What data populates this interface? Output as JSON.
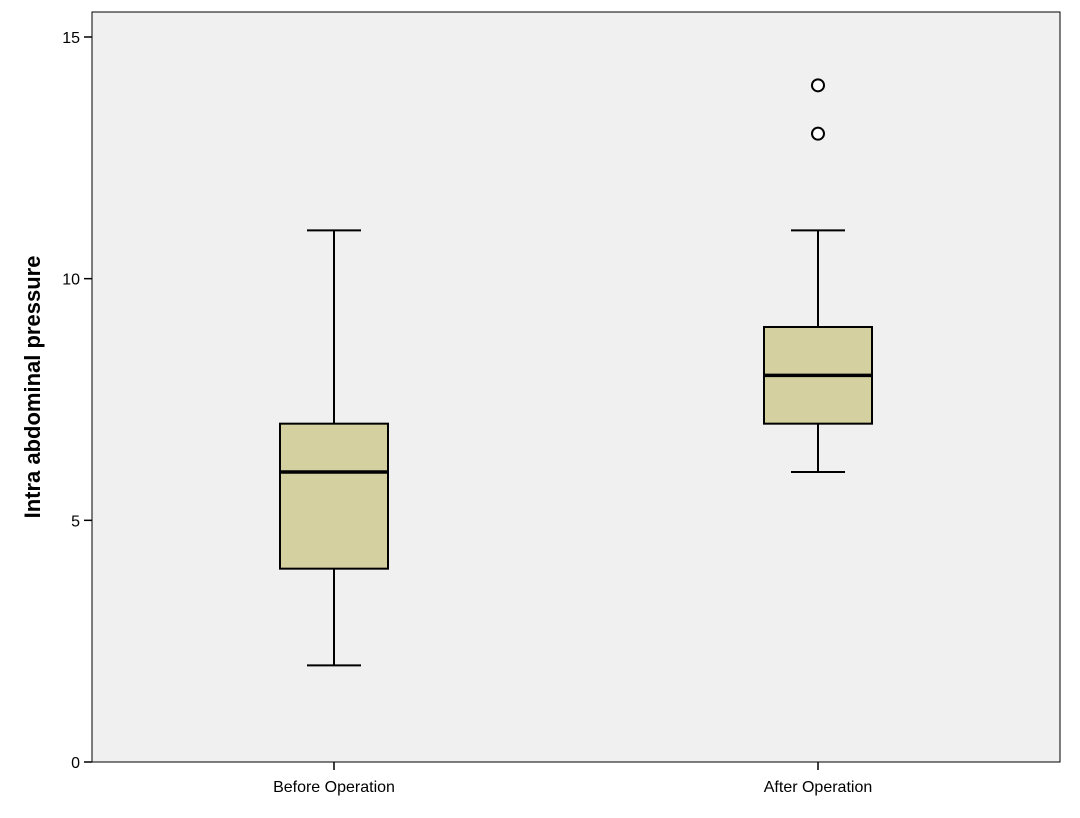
{
  "chart_data": {
    "type": "boxplot",
    "title": "",
    "xlabel": "",
    "ylabel": "Intra abdominal pressure",
    "ylim": [
      0,
      15.5
    ],
    "yticks": [
      0,
      5,
      10,
      15
    ],
    "grid": false,
    "categories": [
      "Before Operation",
      "After Operation"
    ],
    "boxes": [
      {
        "category": "Before Operation",
        "min": 2,
        "q1": 4,
        "median": 6,
        "q3": 7,
        "max": 11,
        "outliers": []
      },
      {
        "category": "After Operation",
        "min": 6,
        "q1": 7,
        "median": 8,
        "q3": 9,
        "max": 11,
        "outliers": [
          13,
          14
        ]
      }
    ],
    "colors": {
      "plot_background": "#f0f0f0",
      "box_fill": "#d5d09f",
      "stroke": "#000000"
    }
  }
}
